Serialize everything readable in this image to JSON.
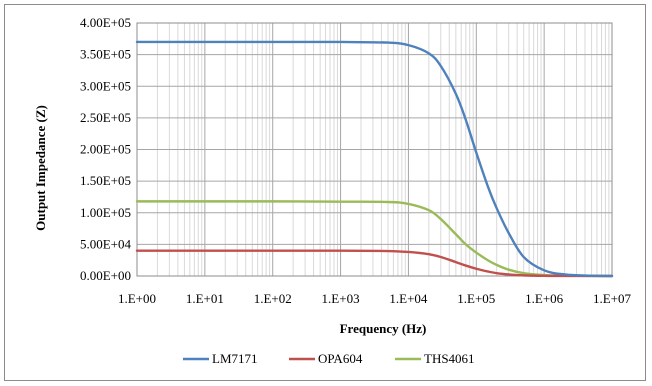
{
  "chart_data": {
    "type": "line",
    "xlabel": "Frequency (Hz)",
    "ylabel": "Output Impedance (Z)",
    "x_scale": "log",
    "xlim": [
      1,
      10000000
    ],
    "ylim": [
      0,
      400000
    ],
    "grid": true,
    "legend_position": "bottom",
    "x_ticks": [
      "1.E+00",
      "1.E+01",
      "1.E+02",
      "1.E+03",
      "1.E+04",
      "1.E+05",
      "1.E+06",
      "1.E+07"
    ],
    "y_ticks": [
      "0.00E+00",
      "5.00E+04",
      "1.00E+05",
      "1.50E+05",
      "2.00E+05",
      "2.50E+05",
      "3.00E+05",
      "3.50E+05",
      "4.00E+05"
    ],
    "series": [
      {
        "name": "LM7171",
        "color": "#4f81bd",
        "x": [
          1,
          10,
          100,
          1000,
          5000,
          10000,
          20000,
          30000,
          50000,
          70000,
          100000,
          150000,
          200000,
          300000,
          500000,
          1000000,
          2000000,
          5000000,
          10000000
        ],
        "y": [
          370000,
          370000,
          370000,
          370000,
          369000,
          365000,
          352000,
          332000,
          288000,
          247000,
          195000,
          140000,
          107000,
          68000,
          30000,
          9000,
          2500,
          500,
          0
        ]
      },
      {
        "name": "OPA604",
        "color": "#c0504d",
        "x": [
          1,
          10,
          100,
          1000,
          5000,
          10000,
          20000,
          30000,
          50000,
          70000,
          100000,
          150000,
          200000,
          300000,
          500000,
          1000000,
          2000000,
          10000000
        ],
        "y": [
          40000,
          40000,
          40000,
          40000,
          39500,
          38000,
          34500,
          30000,
          22000,
          16500,
          11500,
          7000,
          4500,
          2500,
          1000,
          300,
          100,
          0
        ]
      },
      {
        "name": "THS4061",
        "color": "#9bbb59",
        "x": [
          1,
          10,
          100,
          1000,
          5000,
          10000,
          20000,
          30000,
          50000,
          70000,
          100000,
          150000,
          200000,
          300000,
          500000,
          1000000,
          2000000,
          10000000
        ],
        "y": [
          118000,
          118000,
          118000,
          117500,
          117000,
          114000,
          104000,
          90000,
          66000,
          50000,
          37000,
          24500,
          17500,
          10000,
          4500,
          1500,
          400,
          0
        ]
      }
    ]
  }
}
